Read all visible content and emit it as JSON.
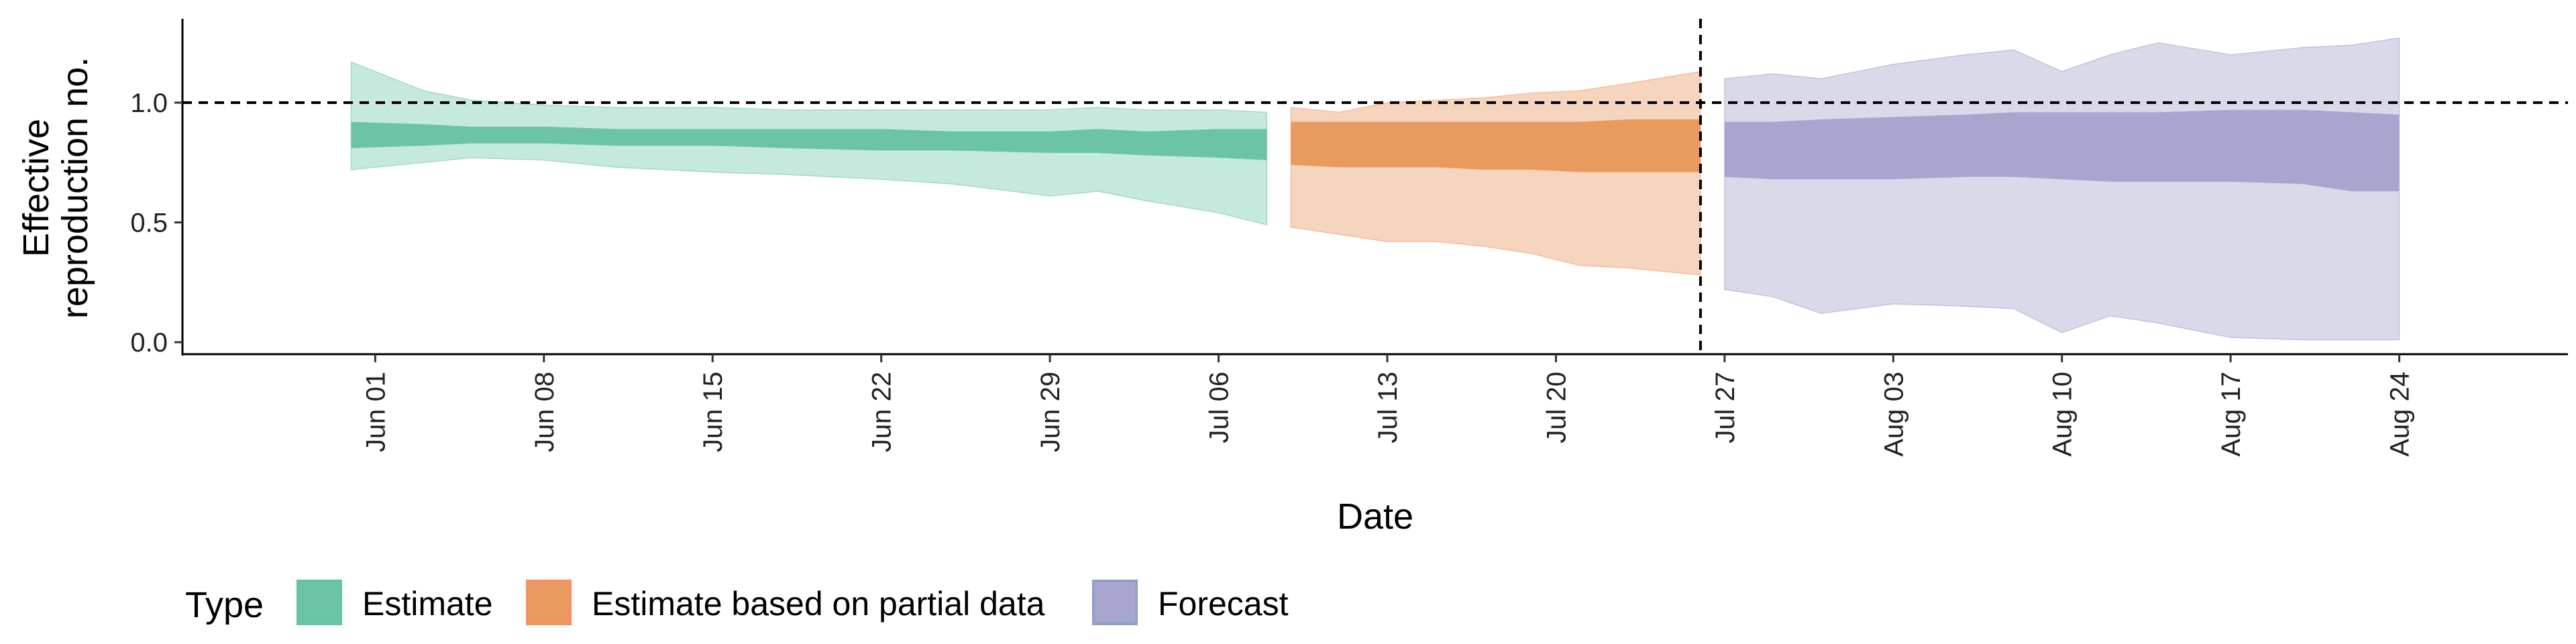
{
  "chart_data": {
    "type": "area",
    "xlabel": "Date",
    "ylabel": "Effective reproduction no.",
    "ylabel_lines": [
      "Effective",
      "reproduction no."
    ],
    "y_ticks": [
      0.0,
      0.5,
      1.0
    ],
    "y_tick_labels": [
      "0.0",
      "0.5",
      "1.0"
    ],
    "ylim": [
      -0.05,
      1.35
    ],
    "xlim": [
      "2020-05-24",
      "2020-08-31"
    ],
    "x_ticks": [
      "2020-06-01",
      "2020-06-08",
      "2020-06-15",
      "2020-06-22",
      "2020-06-29",
      "2020-07-06",
      "2020-07-13",
      "2020-07-20",
      "2020-07-27",
      "2020-08-03",
      "2020-08-10",
      "2020-08-17",
      "2020-08-24"
    ],
    "x_tick_labels": [
      "Jun 01",
      "Jun 08",
      "Jun 15",
      "Jun 22",
      "Jun 29",
      "Jul 06",
      "Jul 13",
      "Jul 20",
      "Jul 27",
      "Aug 03",
      "Aug 10",
      "Aug 17",
      "Aug 24"
    ],
    "reference_line_y": 1.0,
    "reference_line_x": "2020-07-26",
    "legend": {
      "title": "Type",
      "position": "bottom-left"
    },
    "series": [
      {
        "name": "Estimate",
        "color": "#66C2A5",
        "light_color": "#C6E9DE",
        "dark_color": "#6CC4A7",
        "x": [
          "2020-05-31",
          "2020-06-03",
          "2020-06-05",
          "2020-06-08",
          "2020-06-11",
          "2020-06-15",
          "2020-06-18",
          "2020-06-22",
          "2020-06-25",
          "2020-06-29",
          "2020-07-01",
          "2020-07-03",
          "2020-07-06",
          "2020-07-08"
        ],
        "lower_outer": [
          0.72,
          0.75,
          0.77,
          0.76,
          0.73,
          0.71,
          0.7,
          0.68,
          0.66,
          0.61,
          0.63,
          0.59,
          0.54,
          0.49
        ],
        "lower_inner": [
          0.81,
          0.82,
          0.83,
          0.83,
          0.82,
          0.82,
          0.81,
          0.8,
          0.8,
          0.79,
          0.79,
          0.78,
          0.77,
          0.76
        ],
        "upper_inner": [
          0.92,
          0.91,
          0.9,
          0.9,
          0.89,
          0.89,
          0.89,
          0.89,
          0.88,
          0.88,
          0.89,
          0.88,
          0.89,
          0.89
        ],
        "upper_outer": [
          1.17,
          1.05,
          1.01,
          0.99,
          0.98,
          0.98,
          0.97,
          0.97,
          0.97,
          0.97,
          0.98,
          0.97,
          0.97,
          0.96
        ]
      },
      {
        "name": "Estimate based on partial data",
        "color": "#FC8D62",
        "light_color": "#F6D5BE",
        "dark_color": "#E99A5F",
        "x": [
          "2020-07-09",
          "2020-07-11",
          "2020-07-13",
          "2020-07-15",
          "2020-07-17",
          "2020-07-19",
          "2020-07-21",
          "2020-07-23",
          "2020-07-26"
        ],
        "lower_outer": [
          0.48,
          0.45,
          0.42,
          0.42,
          0.4,
          0.37,
          0.32,
          0.31,
          0.28
        ],
        "lower_inner": [
          0.74,
          0.73,
          0.73,
          0.73,
          0.72,
          0.72,
          0.71,
          0.71,
          0.71
        ],
        "upper_inner": [
          0.92,
          0.92,
          0.92,
          0.92,
          0.92,
          0.92,
          0.92,
          0.93,
          0.93
        ],
        "upper_outer": [
          0.98,
          0.96,
          1.0,
          1.01,
          1.02,
          1.04,
          1.05,
          1.08,
          1.13
        ]
      },
      {
        "name": "Forecast",
        "color": "#8DA0CB",
        "light_color": "#DAD9EA",
        "dark_color": "#A8A6CE",
        "x": [
          "2020-07-27",
          "2020-07-29",
          "2020-07-31",
          "2020-08-03",
          "2020-08-06",
          "2020-08-08",
          "2020-08-10",
          "2020-08-12",
          "2020-08-14",
          "2020-08-17",
          "2020-08-20",
          "2020-08-22",
          "2020-08-24"
        ],
        "lower_outer": [
          0.22,
          0.19,
          0.12,
          0.16,
          0.15,
          0.14,
          0.04,
          0.11,
          0.08,
          0.02,
          0.01,
          0.01,
          0.01
        ],
        "lower_inner": [
          0.69,
          0.68,
          0.68,
          0.68,
          0.69,
          0.69,
          0.68,
          0.67,
          0.67,
          0.67,
          0.66,
          0.63,
          0.63
        ],
        "upper_inner": [
          0.92,
          0.92,
          0.93,
          0.94,
          0.95,
          0.96,
          0.96,
          0.96,
          0.96,
          0.97,
          0.97,
          0.96,
          0.95
        ],
        "upper_outer": [
          1.1,
          1.12,
          1.1,
          1.16,
          1.2,
          1.22,
          1.13,
          1.2,
          1.25,
          1.2,
          1.23,
          1.24,
          1.27
        ]
      }
    ]
  }
}
